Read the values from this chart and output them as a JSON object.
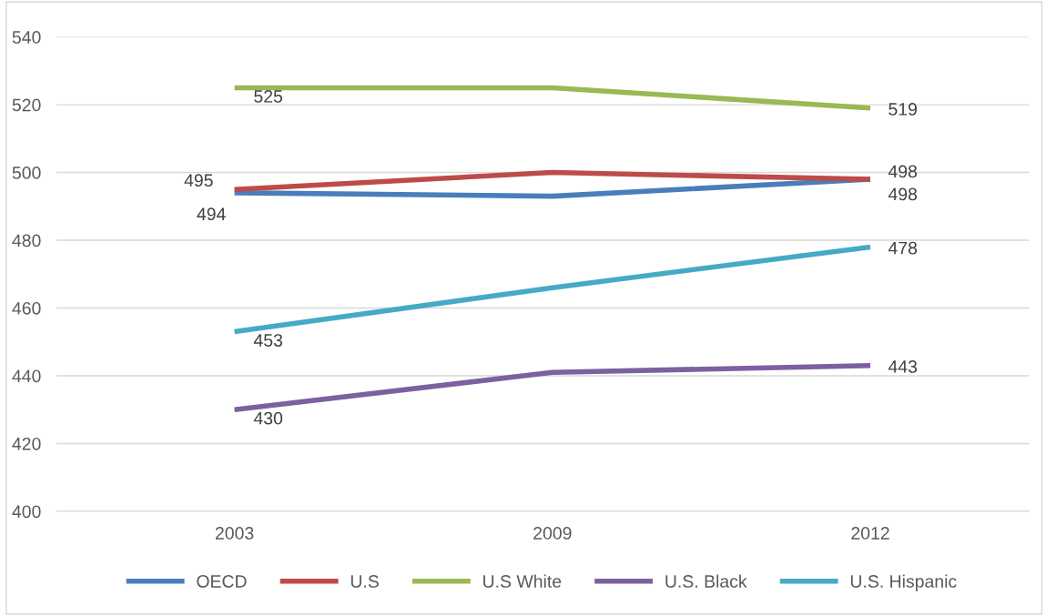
{
  "chart_data": {
    "type": "line",
    "categories": [
      "2003",
      "2009",
      "2012"
    ],
    "series": [
      {
        "name": "OECD",
        "color": "#4a7ebb",
        "values": [
          494,
          493,
          498
        ],
        "value_labels": [
          "494",
          null,
          "498"
        ]
      },
      {
        "name": "U.S",
        "color": "#be4b48",
        "values": [
          495,
          500,
          498
        ],
        "value_labels": [
          "495",
          null,
          "498"
        ]
      },
      {
        "name": "U.S White",
        "color": "#98b954",
        "values": [
          525,
          525,
          519
        ],
        "value_labels": [
          "525",
          null,
          "519"
        ]
      },
      {
        "name": "U.S. Black",
        "color": "#7d60a0",
        "values": [
          430,
          441,
          443
        ],
        "value_labels": [
          "430",
          null,
          "443"
        ]
      },
      {
        "name": "U.S. Hispanic",
        "color": "#46aac5",
        "values": [
          453,
          466,
          478
        ],
        "value_labels": [
          "453",
          null,
          "478"
        ]
      }
    ],
    "ylim": [
      400,
      540
    ],
    "yticks": [
      400,
      420,
      440,
      460,
      480,
      500,
      520,
      540
    ],
    "grid": "y",
    "legend": "bottom",
    "marker": "none",
    "line_style": "solid"
  }
}
